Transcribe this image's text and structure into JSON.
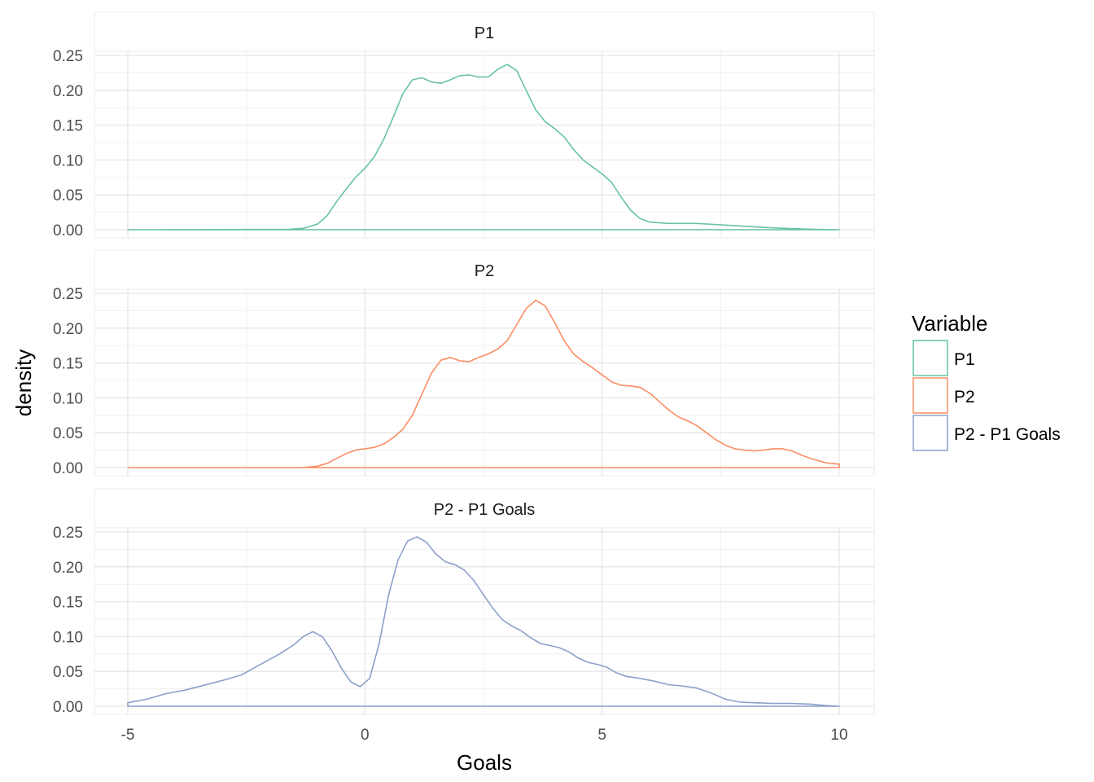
{
  "chart_data": {
    "type": "line",
    "facet": "vertical",
    "xlabel": "Goals",
    "ylabel": "density",
    "xlim": [
      -5,
      10
    ],
    "ylim": [
      0,
      0.25
    ],
    "x_ticks": [
      "-5",
      "0",
      "5",
      "10"
    ],
    "y_ticks": [
      "0.00",
      "0.05",
      "0.10",
      "0.15",
      "0.20",
      "0.25"
    ],
    "grid": true,
    "legend": {
      "title": "Variable",
      "placement": "right",
      "entries": [
        "P1",
        "P2",
        "P2 - P1 Goals"
      ]
    },
    "series": [
      {
        "name": "P1",
        "color": "#66c2a5",
        "points": [
          [
            -5,
            0
          ],
          [
            -1.6,
            0.0005
          ],
          [
            -1.3,
            0.002
          ],
          [
            -1.0,
            0.008
          ],
          [
            -0.8,
            0.02
          ],
          [
            -0.6,
            0.04
          ],
          [
            -0.4,
            0.058
          ],
          [
            -0.2,
            0.075
          ],
          [
            0,
            0.088
          ],
          [
            0.2,
            0.105
          ],
          [
            0.4,
            0.13
          ],
          [
            0.6,
            0.162
          ],
          [
            0.8,
            0.195
          ],
          [
            1.0,
            0.215
          ],
          [
            1.2,
            0.218
          ],
          [
            1.4,
            0.212
          ],
          [
            1.6,
            0.21
          ],
          [
            1.8,
            0.215
          ],
          [
            2.0,
            0.221
          ],
          [
            2.2,
            0.222
          ],
          [
            2.4,
            0.219
          ],
          [
            2.6,
            0.219
          ],
          [
            2.8,
            0.23
          ],
          [
            3.0,
            0.237
          ],
          [
            3.2,
            0.228
          ],
          [
            3.4,
            0.2
          ],
          [
            3.6,
            0.172
          ],
          [
            3.8,
            0.155
          ],
          [
            4.0,
            0.145
          ],
          [
            4.2,
            0.133
          ],
          [
            4.4,
            0.115
          ],
          [
            4.6,
            0.1
          ],
          [
            4.8,
            0.09
          ],
          [
            5.0,
            0.08
          ],
          [
            5.2,
            0.068
          ],
          [
            5.4,
            0.047
          ],
          [
            5.6,
            0.028
          ],
          [
            5.8,
            0.016
          ],
          [
            6.0,
            0.011
          ],
          [
            6.4,
            0.009
          ],
          [
            7.0,
            0.009
          ],
          [
            7.5,
            0.007
          ],
          [
            8.0,
            0.005
          ],
          [
            8.5,
            0.003
          ],
          [
            9.0,
            0.0015
          ],
          [
            9.5,
            0.0005
          ],
          [
            10,
            0
          ]
        ]
      },
      {
        "name": "P2",
        "color": "#fc8d62",
        "points": [
          [
            -5,
            0
          ],
          [
            -1.3,
            0.0
          ],
          [
            -1.0,
            0.002
          ],
          [
            -0.8,
            0.006
          ],
          [
            -0.6,
            0.013
          ],
          [
            -0.4,
            0.02
          ],
          [
            -0.2,
            0.025
          ],
          [
            0,
            0.027
          ],
          [
            0.2,
            0.029
          ],
          [
            0.4,
            0.034
          ],
          [
            0.6,
            0.043
          ],
          [
            0.8,
            0.055
          ],
          [
            1.0,
            0.075
          ],
          [
            1.2,
            0.105
          ],
          [
            1.4,
            0.135
          ],
          [
            1.6,
            0.154
          ],
          [
            1.8,
            0.158
          ],
          [
            2.0,
            0.153
          ],
          [
            2.2,
            0.152
          ],
          [
            2.4,
            0.158
          ],
          [
            2.6,
            0.163
          ],
          [
            2.8,
            0.17
          ],
          [
            3.0,
            0.182
          ],
          [
            3.2,
            0.205
          ],
          [
            3.4,
            0.228
          ],
          [
            3.6,
            0.24
          ],
          [
            3.8,
            0.232
          ],
          [
            4.0,
            0.208
          ],
          [
            4.2,
            0.182
          ],
          [
            4.4,
            0.163
          ],
          [
            4.6,
            0.152
          ],
          [
            4.8,
            0.143
          ],
          [
            5.0,
            0.133
          ],
          [
            5.2,
            0.123
          ],
          [
            5.4,
            0.118
          ],
          [
            5.6,
            0.117
          ],
          [
            5.8,
            0.115
          ],
          [
            6.0,
            0.107
          ],
          [
            6.2,
            0.095
          ],
          [
            6.4,
            0.083
          ],
          [
            6.6,
            0.073
          ],
          [
            6.8,
            0.067
          ],
          [
            7.0,
            0.06
          ],
          [
            7.2,
            0.05
          ],
          [
            7.4,
            0.04
          ],
          [
            7.6,
            0.032
          ],
          [
            7.8,
            0.027
          ],
          [
            8.0,
            0.025
          ],
          [
            8.2,
            0.024
          ],
          [
            8.4,
            0.025
          ],
          [
            8.6,
            0.027
          ],
          [
            8.8,
            0.027
          ],
          [
            9.0,
            0.024
          ],
          [
            9.2,
            0.018
          ],
          [
            9.4,
            0.013
          ],
          [
            9.6,
            0.009
          ],
          [
            9.8,
            0.006
          ],
          [
            10.0,
            0.005
          ]
        ]
      },
      {
        "name": "P2 - P1 Goals",
        "color": "#8da0cb",
        "points": [
          [
            -5,
            0.005
          ],
          [
            -4.6,
            0.01
          ],
          [
            -4.2,
            0.018
          ],
          [
            -3.8,
            0.023
          ],
          [
            -3.4,
            0.03
          ],
          [
            -3.0,
            0.037
          ],
          [
            -2.6,
            0.045
          ],
          [
            -2.2,
            0.06
          ],
          [
            -1.8,
            0.075
          ],
          [
            -1.5,
            0.088
          ],
          [
            -1.3,
            0.1
          ],
          [
            -1.1,
            0.107
          ],
          [
            -0.9,
            0.1
          ],
          [
            -0.7,
            0.08
          ],
          [
            -0.5,
            0.055
          ],
          [
            -0.3,
            0.035
          ],
          [
            -0.1,
            0.028
          ],
          [
            0.1,
            0.04
          ],
          [
            0.3,
            0.09
          ],
          [
            0.5,
            0.16
          ],
          [
            0.7,
            0.21
          ],
          [
            0.9,
            0.237
          ],
          [
            1.1,
            0.243
          ],
          [
            1.3,
            0.235
          ],
          [
            1.5,
            0.218
          ],
          [
            1.7,
            0.207
          ],
          [
            1.9,
            0.203
          ],
          [
            2.1,
            0.195
          ],
          [
            2.3,
            0.18
          ],
          [
            2.5,
            0.16
          ],
          [
            2.7,
            0.14
          ],
          [
            2.9,
            0.124
          ],
          [
            3.1,
            0.115
          ],
          [
            3.3,
            0.108
          ],
          [
            3.5,
            0.098
          ],
          [
            3.7,
            0.09
          ],
          [
            3.9,
            0.087
          ],
          [
            4.1,
            0.084
          ],
          [
            4.3,
            0.078
          ],
          [
            4.5,
            0.069
          ],
          [
            4.7,
            0.063
          ],
          [
            4.9,
            0.06
          ],
          [
            5.1,
            0.056
          ],
          [
            5.3,
            0.048
          ],
          [
            5.5,
            0.043
          ],
          [
            5.8,
            0.04
          ],
          [
            6.1,
            0.036
          ],
          [
            6.4,
            0.031
          ],
          [
            6.7,
            0.029
          ],
          [
            7.0,
            0.026
          ],
          [
            7.3,
            0.019
          ],
          [
            7.6,
            0.01
          ],
          [
            7.9,
            0.006
          ],
          [
            8.2,
            0.005
          ],
          [
            8.6,
            0.004
          ],
          [
            9.0,
            0.004
          ],
          [
            9.4,
            0.003
          ],
          [
            9.7,
            0.001
          ],
          [
            10,
            0.0
          ]
        ]
      }
    ]
  }
}
